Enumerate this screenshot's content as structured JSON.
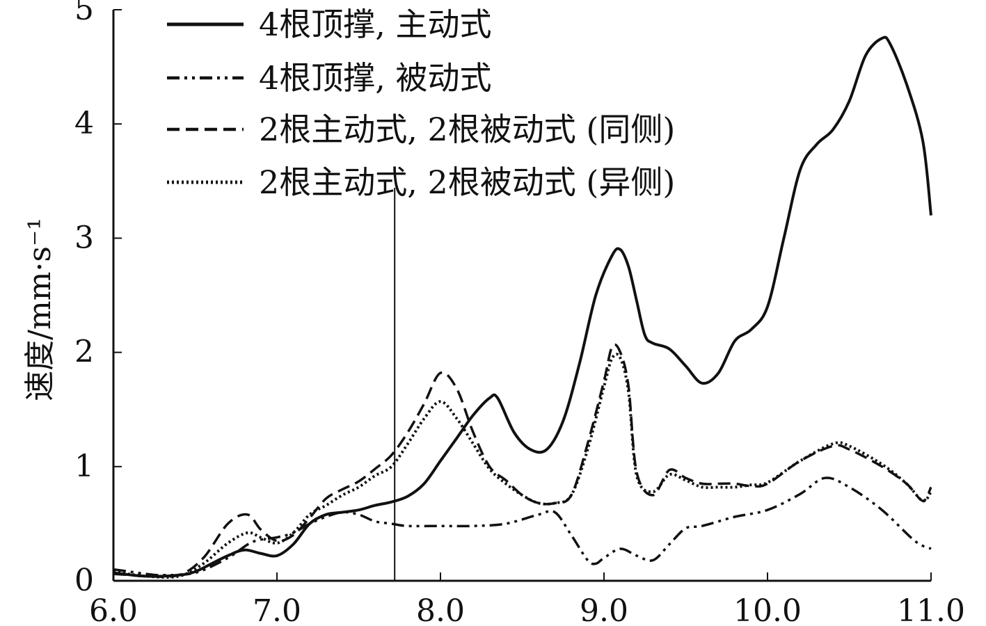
{
  "chart_data": {
    "type": "line",
    "title": "",
    "xlabel": "",
    "ylabel": "速度/mm·s⁻¹",
    "xlim": [
      6.0,
      11.0
    ],
    "ylim": [
      0,
      5
    ],
    "x_ticks": [
      "6.0",
      "7.0",
      "8.0",
      "9.0",
      "10.0",
      "11.0"
    ],
    "y_ticks": [
      "0",
      "1",
      "2",
      "3",
      "4",
      "5"
    ],
    "grid": false,
    "legend_position": "top-left",
    "reference_line_x": 7.72,
    "series": [
      {
        "name": "4根顶撑, 主动式",
        "style": "solid",
        "x": [
          6.0,
          6.2,
          6.4,
          6.5,
          6.6,
          6.7,
          6.8,
          6.9,
          7.0,
          7.1,
          7.2,
          7.3,
          7.4,
          7.5,
          7.6,
          7.7,
          7.8,
          7.9,
          8.0,
          8.1,
          8.2,
          8.3,
          8.35,
          8.45,
          8.55,
          8.65,
          8.75,
          8.85,
          8.95,
          9.05,
          9.1,
          9.15,
          9.2,
          9.25,
          9.3,
          9.4,
          9.5,
          9.6,
          9.7,
          9.8,
          9.9,
          10.0,
          10.1,
          10.2,
          10.3,
          10.4,
          10.5,
          10.6,
          10.7,
          10.75,
          10.85,
          10.95,
          11.0
        ],
        "y": [
          0.07,
          0.04,
          0.05,
          0.08,
          0.15,
          0.22,
          0.27,
          0.24,
          0.22,
          0.32,
          0.5,
          0.58,
          0.6,
          0.62,
          0.66,
          0.69,
          0.74,
          0.85,
          1.05,
          1.25,
          1.45,
          1.6,
          1.6,
          1.3,
          1.15,
          1.15,
          1.4,
          1.9,
          2.5,
          2.85,
          2.9,
          2.75,
          2.45,
          2.15,
          2.08,
          2.03,
          1.88,
          1.73,
          1.82,
          2.1,
          2.2,
          2.4,
          3.0,
          3.6,
          3.82,
          3.95,
          4.2,
          4.6,
          4.75,
          4.7,
          4.35,
          3.85,
          3.2
        ]
      },
      {
        "name": "4根顶撑, 被动式",
        "style": "dash-dot-dot",
        "x": [
          6.0,
          6.1,
          6.2,
          6.3,
          6.5,
          6.7,
          6.85,
          7.0,
          7.1,
          7.2,
          7.3,
          7.4,
          7.5,
          7.6,
          7.7,
          7.8,
          8.0,
          8.2,
          8.4,
          8.6,
          8.7,
          8.8,
          8.9,
          8.95,
          9.0,
          9.1,
          9.2,
          9.3,
          9.4,
          9.5,
          9.6,
          9.8,
          10.0,
          10.2,
          10.35,
          10.5,
          10.7,
          10.9,
          11.0
        ],
        "y": [
          0.1,
          0.08,
          0.06,
          0.05,
          0.07,
          0.2,
          0.34,
          0.38,
          0.42,
          0.5,
          0.56,
          0.6,
          0.58,
          0.52,
          0.5,
          0.48,
          0.48,
          0.48,
          0.5,
          0.58,
          0.6,
          0.4,
          0.18,
          0.15,
          0.2,
          0.28,
          0.22,
          0.18,
          0.32,
          0.46,
          0.48,
          0.56,
          0.62,
          0.76,
          0.9,
          0.82,
          0.62,
          0.35,
          0.28
        ]
      },
      {
        "name": "2根主动式, 2根被动式 (同侧)",
        "style": "dashed",
        "x": [
          6.0,
          6.1,
          6.2,
          6.4,
          6.55,
          6.7,
          6.82,
          6.9,
          7.0,
          7.1,
          7.2,
          7.3,
          7.4,
          7.5,
          7.6,
          7.7,
          7.8,
          7.9,
          8.0,
          8.1,
          8.2,
          8.3,
          8.4,
          8.5,
          8.6,
          8.7,
          8.8,
          8.9,
          9.0,
          9.05,
          9.1,
          9.15,
          9.2,
          9.3,
          9.4,
          9.5,
          9.6,
          9.7,
          9.8,
          9.9,
          10.0,
          10.2,
          10.4,
          10.5,
          10.7,
          10.85,
          10.95,
          11.0
        ],
        "y": [
          0.06,
          0.05,
          0.04,
          0.05,
          0.2,
          0.5,
          0.58,
          0.45,
          0.35,
          0.4,
          0.55,
          0.72,
          0.8,
          0.87,
          0.98,
          1.1,
          1.3,
          1.55,
          1.82,
          1.68,
          1.3,
          1.0,
          0.88,
          0.75,
          0.68,
          0.68,
          0.75,
          1.2,
          1.75,
          2.05,
          2.0,
          1.7,
          0.95,
          0.75,
          0.97,
          0.9,
          0.85,
          0.85,
          0.85,
          0.83,
          0.85,
          1.05,
          1.18,
          1.15,
          1.0,
          0.85,
          0.7,
          0.82
        ]
      },
      {
        "name": "2根主动式, 2根被动式 (异侧)",
        "style": "dotted",
        "x": [
          6.0,
          6.2,
          6.4,
          6.55,
          6.7,
          6.82,
          6.9,
          7.0,
          7.1,
          7.2,
          7.3,
          7.4,
          7.5,
          7.6,
          7.7,
          7.8,
          7.9,
          8.0,
          8.1,
          8.2,
          8.3,
          8.4,
          8.5,
          8.6,
          8.7,
          8.8,
          8.9,
          9.0,
          9.05,
          9.1,
          9.15,
          9.2,
          9.3,
          9.4,
          9.5,
          9.6,
          9.7,
          9.8,
          9.9,
          10.0,
          10.2,
          10.4,
          10.5,
          10.7,
          10.85,
          10.95,
          11.0
        ],
        "y": [
          0.08,
          0.04,
          0.04,
          0.15,
          0.33,
          0.42,
          0.38,
          0.33,
          0.42,
          0.58,
          0.66,
          0.75,
          0.82,
          0.92,
          1.0,
          1.2,
          1.42,
          1.57,
          1.42,
          1.2,
          0.98,
          0.85,
          0.75,
          0.68,
          0.68,
          0.75,
          1.15,
          1.7,
          1.95,
          1.95,
          1.65,
          0.92,
          0.78,
          0.93,
          0.88,
          0.82,
          0.82,
          0.82,
          0.84,
          0.86,
          1.05,
          1.2,
          1.18,
          1.02,
          0.85,
          0.7,
          0.78
        ]
      }
    ]
  }
}
